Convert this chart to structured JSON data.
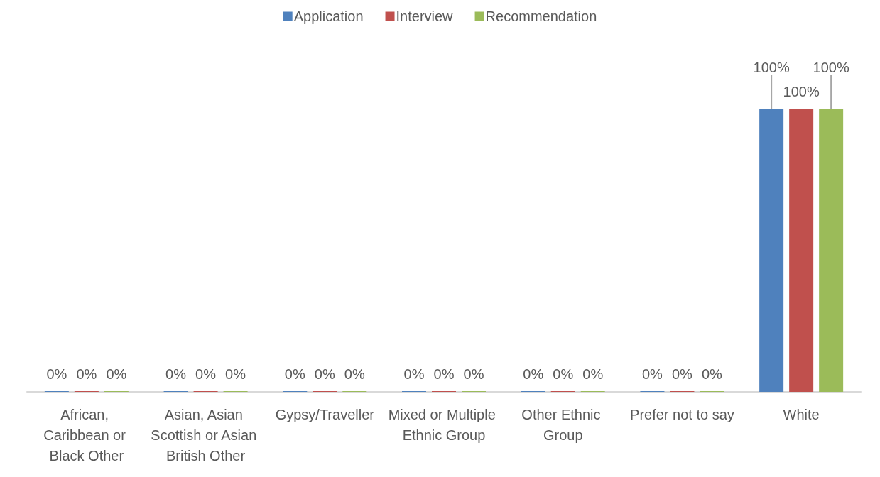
{
  "chart_data": {
    "type": "bar",
    "categories": [
      "African, Caribbean or Black Other",
      "Asian, Asian Scottish or Asian British Other",
      "Gypsy/Traveller",
      "Mixed or Multiple Ethnic Group",
      "Other Ethnic Group",
      "Prefer not to say",
      "White"
    ],
    "series": [
      {
        "name": "Application",
        "color": "#4f81bd",
        "values": [
          0,
          0,
          0,
          0,
          0,
          0,
          100
        ],
        "value_labels": [
          "0%",
          "0%",
          "0%",
          "0%",
          "0%",
          "0%",
          "100%"
        ]
      },
      {
        "name": "Interview",
        "color": "#c0504d",
        "values": [
          0,
          0,
          0,
          0,
          0,
          0,
          100
        ],
        "value_labels": [
          "0%",
          "0%",
          "0%",
          "0%",
          "0%",
          "0%",
          "100%"
        ]
      },
      {
        "name": "Recommendation",
        "color": "#9bbb59",
        "values": [
          0,
          0,
          0,
          0,
          0,
          0,
          100
        ],
        "value_labels": [
          "0%",
          "0%",
          "0%",
          "0%",
          "0%",
          "0%",
          "100%"
        ]
      }
    ],
    "legend": "top",
    "tick_labels": "x"
  }
}
